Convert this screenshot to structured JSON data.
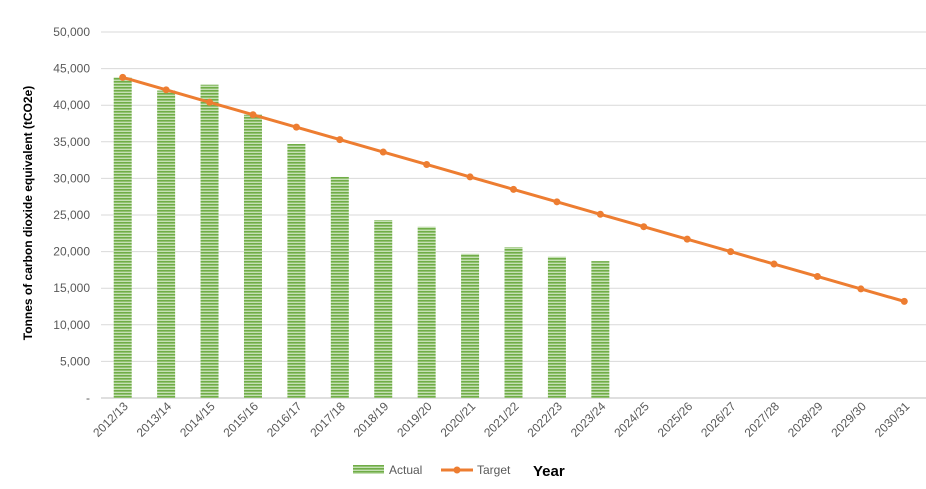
{
  "chart_data": {
    "type": "bar",
    "categories": [
      "2012/13",
      "2013/14",
      "2014/15",
      "2015/16",
      "2016/17",
      "2017/18",
      "2018/19",
      "2019/20",
      "2020/21",
      "2021/22",
      "2022/23",
      "2023/24",
      "2024/25",
      "2025/26",
      "2026/27",
      "2027/28",
      "2028/29",
      "2029/30",
      "2030/31"
    ],
    "series": [
      {
        "name": "Actual",
        "type": "bar",
        "color": "#70AD47",
        "values": [
          43800,
          42000,
          42800,
          38700,
          34700,
          30200,
          24300,
          23400,
          19700,
          20600,
          19300,
          18700,
          null,
          null,
          null,
          null,
          null,
          null,
          null
        ]
      },
      {
        "name": "Target",
        "type": "line",
        "color": "#ED7D31",
        "values": [
          43800,
          42100,
          40400,
          38700,
          37000,
          35300,
          33600,
          31900,
          30200,
          28500,
          26800,
          25100,
          23400,
          21700,
          20000,
          18300,
          16600,
          14900,
          13200
        ]
      }
    ],
    "xlabel": "Year",
    "ylabel": "Tonnes of carbon dioxide equivalent (tCO2e)",
    "ylim": [
      0,
      50000
    ],
    "yticks": [
      "-",
      "5,000",
      "10,000",
      "15,000",
      "20,000",
      "25,000",
      "30,000",
      "35,000",
      "40,000",
      "45,000",
      "50,000"
    ],
    "grid": true,
    "legend_position": "bottom"
  }
}
